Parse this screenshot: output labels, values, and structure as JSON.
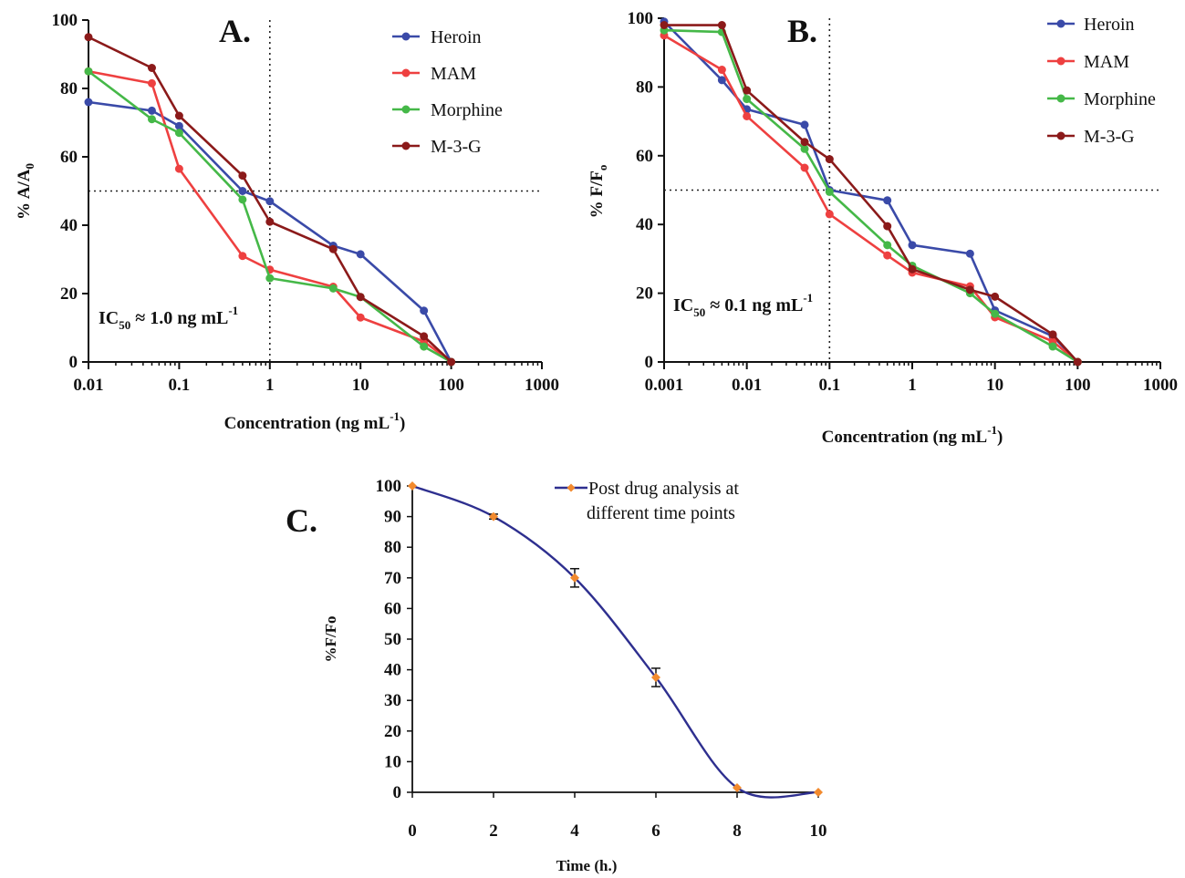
{
  "chart_data": [
    {
      "panel": "A.",
      "type": "line",
      "xscale": "log",
      "xlim": [
        0.01,
        1000
      ],
      "ylim": [
        0,
        100
      ],
      "xticks": [
        "0.01",
        "0.1",
        "1",
        "10",
        "100",
        "1000"
      ],
      "yticks": [
        "0",
        "20",
        "40",
        "60",
        "80",
        "100"
      ],
      "xlabel": "Concentration (ng mL",
      "xlabel_sup": "-1",
      "xlabel_tail": ")",
      "ylabel": "% A/A",
      "ylabel_sub": "0",
      "annotation": {
        "pre": "IC",
        "sub": "50",
        "mid": " ≈ 1.0 ng mL",
        "sup": "-1"
      },
      "reference_lines": {
        "x": 1,
        "y": 50
      },
      "legend_position": "top-right",
      "series": [
        {
          "name": "Heroin",
          "color": "#3a4aa8",
          "x": [
            0.01,
            0.05,
            0.1,
            0.5,
            1,
            5,
            10,
            50,
            100
          ],
          "y": [
            76,
            73.5,
            69,
            50,
            47,
            34,
            31.5,
            15,
            0
          ]
        },
        {
          "name": "MAM",
          "color": "#ee4040",
          "x": [
            0.01,
            0.05,
            0.1,
            0.5,
            1,
            5,
            10,
            50,
            100
          ],
          "y": [
            85,
            81.5,
            56.5,
            31,
            27,
            22,
            13,
            6,
            0
          ]
        },
        {
          "name": "Morphine",
          "color": "#45b848",
          "x": [
            0.01,
            0.05,
            0.1,
            0.5,
            1,
            5,
            10,
            50,
            100
          ],
          "y": [
            85,
            71,
            67,
            47.5,
            24.5,
            21.5,
            19,
            4.5,
            0
          ]
        },
        {
          "name": "M-3-G",
          "color": "#8b1a1a",
          "x": [
            0.01,
            0.05,
            0.1,
            0.5,
            1,
            5,
            10,
            50,
            100
          ],
          "y": [
            95,
            86,
            72,
            54.5,
            41,
            33,
            19,
            7.5,
            0
          ]
        }
      ]
    },
    {
      "panel": "B.",
      "type": "line",
      "xscale": "log",
      "xlim": [
        0.001,
        1000
      ],
      "ylim": [
        0,
        100
      ],
      "xticks": [
        "0.001",
        "0.01",
        "0.1",
        "1",
        "10",
        "100",
        "1000"
      ],
      "yticks": [
        "0",
        "20",
        "40",
        "60",
        "80",
        "100"
      ],
      "xlabel": "Concentration (ng mL",
      "xlabel_sup": "-1",
      "xlabel_tail": ")",
      "ylabel": "% F/F",
      "ylabel_sub": "o",
      "annotation": {
        "pre": "IC",
        "sub": "50",
        "mid": " ≈ 0.1 ng mL",
        "sup": "-1"
      },
      "reference_lines": {
        "x": 0.1,
        "y": 50
      },
      "legend_position": "top-right",
      "series": [
        {
          "name": "Heroin",
          "color": "#3a4aa8",
          "x": [
            0.001,
            0.005,
            0.01,
            0.05,
            0.1,
            0.5,
            1,
            5,
            10,
            50,
            100
          ],
          "y": [
            99,
            82,
            73.5,
            69,
            50,
            47,
            34,
            31.5,
            15,
            7.5,
            0
          ]
        },
        {
          "name": "MAM",
          "color": "#ee4040",
          "x": [
            0.001,
            0.005,
            0.01,
            0.05,
            0.1,
            0.5,
            1,
            5,
            10,
            50,
            100
          ],
          "y": [
            95,
            85,
            71.5,
            56.5,
            43,
            31,
            26,
            22,
            13,
            6,
            0
          ]
        },
        {
          "name": "Morphine",
          "color": "#45b848",
          "x": [
            0.001,
            0.005,
            0.01,
            0.05,
            0.1,
            0.5,
            1,
            5,
            10,
            50,
            100
          ],
          "y": [
            96.5,
            96,
            76.5,
            62,
            49.5,
            34,
            28,
            20,
            14,
            4.5,
            0
          ]
        },
        {
          "name": "M-3-G",
          "color": "#8b1a1a",
          "x": [
            0.001,
            0.005,
            0.01,
            0.05,
            0.1,
            0.5,
            1,
            5,
            10,
            50,
            100
          ],
          "y": [
            98,
            98,
            79,
            64,
            59,
            39.5,
            27,
            21,
            19,
            8,
            0
          ]
        }
      ]
    },
    {
      "panel": "C.",
      "type": "line",
      "xscale": "linear",
      "xlim": [
        0,
        10
      ],
      "ylim": [
        0,
        100
      ],
      "xticks": [
        "0",
        "2",
        "4",
        "6",
        "8",
        "10"
      ],
      "yticks": [
        "0",
        "10",
        "20",
        "30",
        "40",
        "50",
        "60",
        "70",
        "80",
        "90",
        "100"
      ],
      "xlabel": "Time (h.)",
      "ylabel": "%F/Fo",
      "legend_position": "top-right",
      "series": [
        {
          "name": "Post drug analysis at different time points",
          "line_color": "#2e2f8f",
          "marker_color": "#f28a2e",
          "x": [
            0,
            2,
            4,
            6,
            8,
            10
          ],
          "y": [
            100,
            90,
            70,
            37.5,
            1.5,
            0
          ],
          "error": [
            0,
            0.8,
            3,
            3,
            0,
            0
          ]
        }
      ]
    }
  ]
}
